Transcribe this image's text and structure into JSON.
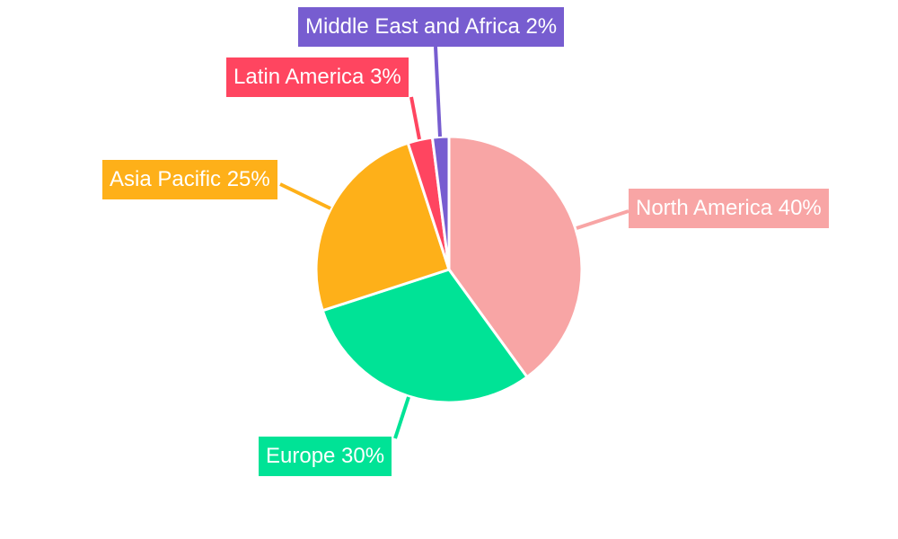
{
  "chart_data": {
    "type": "pie",
    "categories": [
      "North America",
      "Europe",
      "Asia Pacific",
      "Latin America",
      "Middle East and Africa"
    ],
    "values": [
      40,
      30,
      25,
      3,
      2
    ],
    "labels": [
      "North America 40%",
      "Europe 30%",
      "Asia Pacific 25%",
      "Latin America 3%",
      "Middle East and Africa 2%"
    ],
    "colors": [
      "#f8a5a5",
      "#00e396",
      "#feb019",
      "#ff4560",
      "#775dd0"
    ],
    "start_angle": "top, clockwise",
    "legend": "none"
  }
}
